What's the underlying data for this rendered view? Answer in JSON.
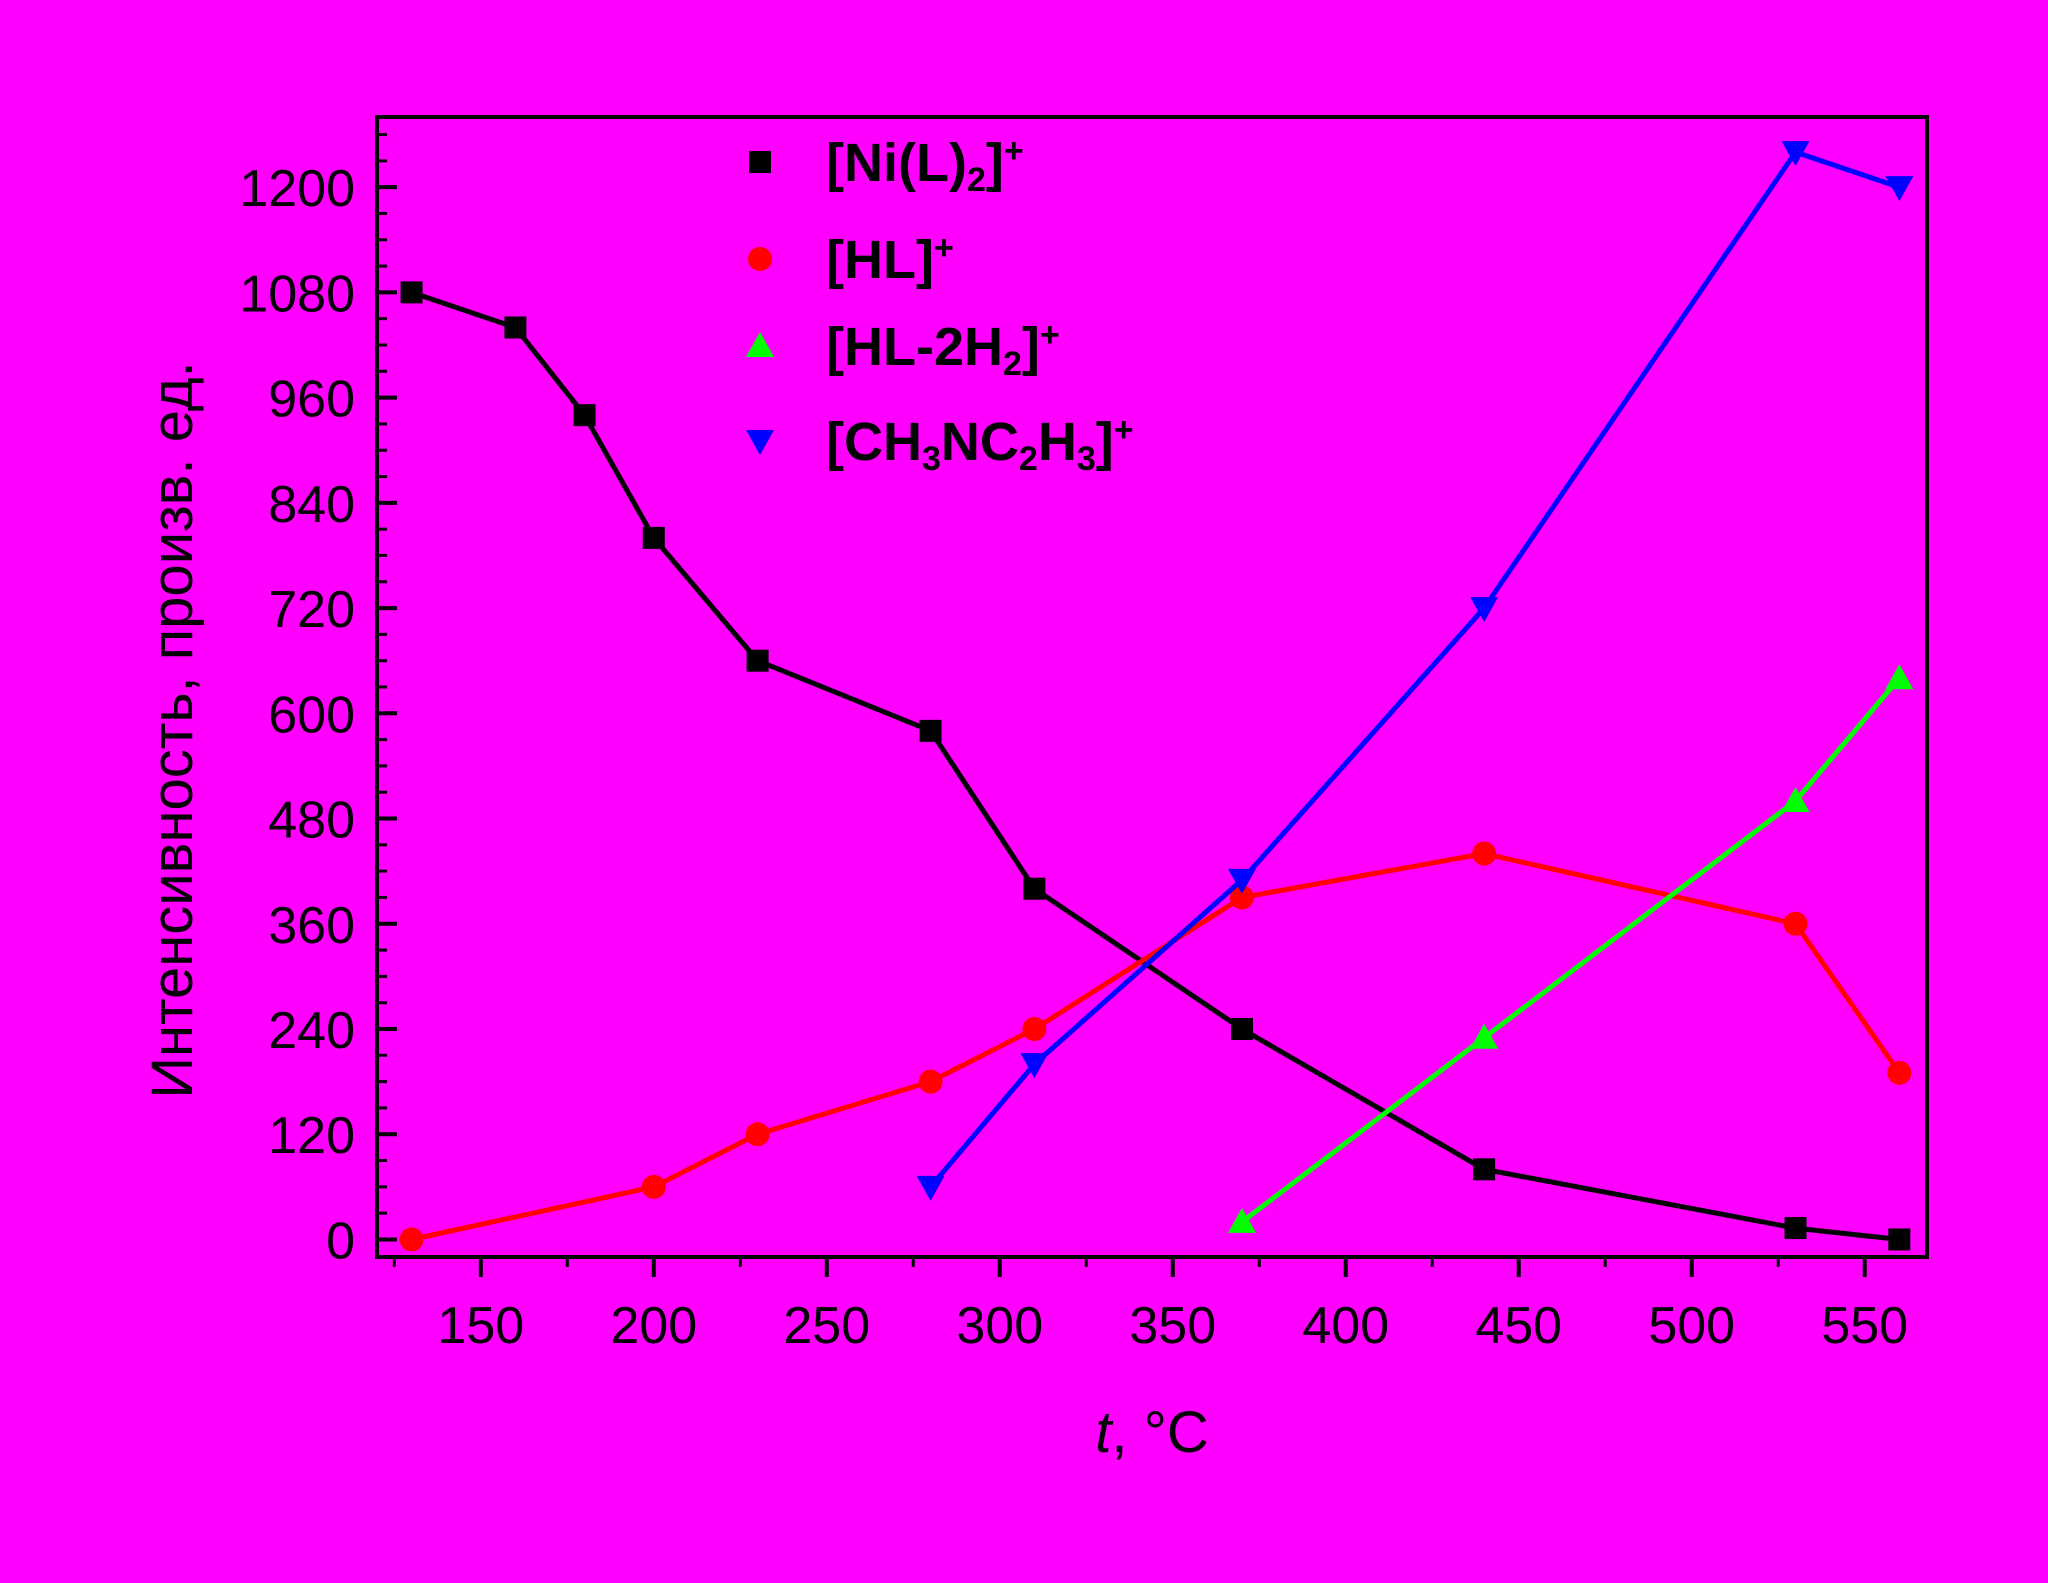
{
  "colors": {
    "background": "#FF00FF",
    "axis": "#000000"
  },
  "chart_data": {
    "type": "line",
    "xlabel_italic": "t",
    "xlabel_rest": ", °C",
    "ylabel": "Интенсивность, произв. ед.",
    "xlim": [
      120,
      568
    ],
    "ylim": [
      -20,
      1280
    ],
    "xticks": [
      150,
      200,
      250,
      300,
      350,
      400,
      450,
      500,
      550
    ],
    "yticks": [
      0,
      120,
      240,
      360,
      480,
      600,
      720,
      840,
      960,
      1080,
      1200
    ],
    "legend_position": "top-center",
    "series": [
      {
        "key": "ni",
        "name": "[Ni(L)2]+",
        "name_parts": [
          [
            "[Ni(L)",
            "n"
          ],
          [
            "2",
            "sub"
          ],
          [
            "]",
            "n"
          ],
          [
            "+",
            "sup"
          ]
        ],
        "color": "#000000",
        "marker": "square",
        "x": [
          130,
          160,
          180,
          200,
          230,
          280,
          310,
          370,
          440,
          530,
          560
        ],
        "y": [
          1080,
          1040,
          940,
          800,
          660,
          580,
          400,
          240,
          80,
          13,
          0
        ]
      },
      {
        "key": "hl",
        "name": "[HL]+",
        "name_parts": [
          [
            "[HL]",
            "n"
          ],
          [
            "+",
            "sup"
          ]
        ],
        "color": "#FF0000",
        "marker": "circle",
        "x": [
          130,
          200,
          230,
          280,
          310,
          370,
          440,
          530,
          560
        ],
        "y": [
          0,
          60,
          120,
          180,
          240,
          390,
          440,
          360,
          190
        ]
      },
      {
        "key": "hl2h2",
        "name": "[HL-2H2]+",
        "name_parts": [
          [
            "[HL-2H",
            "n"
          ],
          [
            "2",
            "sub"
          ],
          [
            "]",
            "n"
          ],
          [
            "+",
            "sup"
          ]
        ],
        "color": "#00FF00",
        "marker": "triangle-up",
        "x": [
          370,
          440,
          530,
          560
        ],
        "y": [
          20,
          230,
          500,
          640
        ]
      },
      {
        "key": "ch3nc2h3",
        "name": "[CH3NC2H3]+",
        "name_parts": [
          [
            "[CH",
            "n"
          ],
          [
            "3",
            "sub"
          ],
          [
            "NC",
            "n"
          ],
          [
            "2",
            "sub"
          ],
          [
            "H",
            "n"
          ],
          [
            "3",
            "sub"
          ],
          [
            "]",
            "n"
          ],
          [
            "+",
            "sup"
          ]
        ],
        "color": "#0000FF",
        "marker": "triangle-down",
        "x": [
          280,
          310,
          370,
          440,
          530,
          560
        ],
        "y": [
          60,
          200,
          410,
          720,
          1240,
          1200
        ]
      }
    ]
  }
}
